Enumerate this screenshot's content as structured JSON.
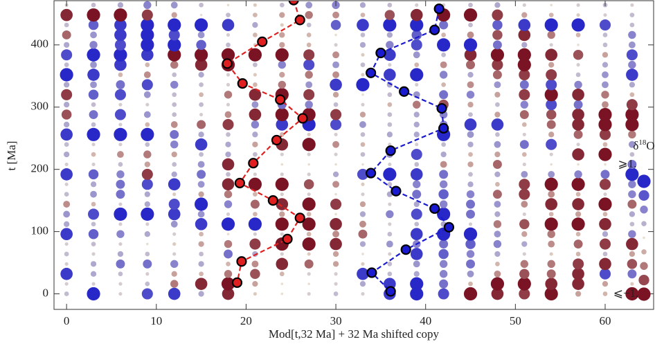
{
  "chart_data": {
    "type": "scatter",
    "xlabel": "Mod[t,32 Ma] + 32 Ma shifted copy",
    "ylabel": "t [Ma]",
    "xlim": [
      -1.4,
      65.4
    ],
    "ylim": [
      -25,
      471
    ],
    "xticks": [
      0,
      10,
      20,
      30,
      40,
      50,
      60
    ],
    "yticks": [
      0,
      100,
      200,
      300,
      400
    ],
    "x": [
      0,
      3,
      6,
      9,
      12,
      15,
      18,
      21,
      24,
      27,
      30,
      33,
      36,
      39,
      42,
      45,
      48,
      51,
      54,
      57,
      60,
      63
    ],
    "rows": [
      {
        "t": 0,
        "values": [
          0.2,
          1,
          0.1,
          0.8,
          0.9,
          0.3,
          -0.9,
          -0.1,
          0,
          0.1,
          0.2,
          0.1,
          0.9,
          1,
          0.8,
          -1,
          -0.9,
          -0.8,
          -1,
          -0.3,
          -0.2,
          -1
        ]
      },
      {
        "t": 16,
        "values": [
          0.1,
          0.1,
          0.1,
          0.2,
          -0.5,
          -0.9,
          -1,
          -0.3,
          0,
          0,
          0.1,
          0.3,
          0.9,
          1,
          0.6,
          -0.2,
          -1,
          -1,
          -0.9,
          -0.9,
          -0.3,
          -0.1
        ]
      },
      {
        "t": 32,
        "values": [
          0.9,
          0.3,
          0.2,
          0.1,
          -0.3,
          -0.2,
          -0.5,
          -0.7,
          -0.2,
          0.1,
          0.1,
          0.9,
          0.2,
          0.3,
          0.5,
          0.4,
          -0.4,
          -0.7,
          -0.6,
          -0.9,
          0.8,
          0.6
        ]
      },
      {
        "t": 48,
        "values": [
          0.1,
          0.3,
          0.6,
          0.6,
          0.5,
          0.3,
          -0.2,
          -0.4,
          -0.9,
          -0.6,
          -0.3,
          -0.1,
          0.2,
          0.4,
          0.5,
          0.6,
          -0.2,
          -0.5,
          -0.5,
          -0.8,
          -0.9,
          -0.7
        ]
      },
      {
        "t": 64,
        "values": [
          0.2,
          0.1,
          0.3,
          0.2,
          0.1,
          0.2,
          0.6,
          0.3,
          0.1,
          -0.1,
          -0.3,
          0,
          0.1,
          0.9,
          0.7,
          0.5,
          0.3,
          0.1,
          -0.1,
          -0.2,
          0.2,
          -0.3
        ]
      },
      {
        "t": 80,
        "values": [
          0.1,
          0.2,
          0.1,
          0,
          -0.1,
          -0.3,
          -0.5,
          -0.8,
          -1,
          -1,
          -0.9,
          0.3,
          0.4,
          0.5,
          0.6,
          0.7,
          0.5,
          0.3,
          -0.4,
          -0.6,
          -0.8,
          -0.9
        ]
      },
      {
        "t": 96,
        "values": [
          0.9,
          0.7,
          0.5,
          0.3,
          0.1,
          -0.2,
          0,
          0.1,
          0.1,
          -0.2,
          -0.4,
          -0.6,
          0.2,
          0.9,
          1,
          1,
          0.4,
          -0.3,
          -0.5,
          -0.2,
          0.3,
          0.5
        ]
      },
      {
        "t": 112,
        "values": [
          0.3,
          0.2,
          0.1,
          0.1,
          0.4,
          0.9,
          1,
          1,
          -1,
          -1,
          -0.9,
          -0.4,
          0.1,
          0.2,
          0.3,
          0.1,
          -0.5,
          -0.7,
          -1,
          -1,
          -0.9,
          0.2
        ]
      },
      {
        "t": 128,
        "values": [
          0.4,
          0.8,
          1,
          1,
          0.9,
          0.4,
          0.1,
          -0.2,
          -0.3,
          -0.2,
          0,
          0.3,
          0.5,
          0.8,
          1,
          0.6,
          0.3,
          0.1,
          -0.2,
          -0.3,
          -0.2,
          0.3
        ]
      },
      {
        "t": 144,
        "values": [
          -0.4,
          -0.2,
          0.1,
          0.3,
          0.8,
          1,
          0.5,
          -0.6,
          -0.9,
          -1,
          -0.8,
          -0.3,
          0.1,
          0.3,
          0.5,
          0.6,
          0.4,
          -0.4,
          -0.9,
          -0.9,
          -1,
          -0.6
        ]
      },
      {
        "t": 160,
        "values": [
          0.2,
          0.4,
          0.6,
          0.3,
          -0.1,
          -0.3,
          -0.5,
          -0.2,
          0.1,
          0.1,
          0,
          0.1,
          0.3,
          0.6,
          0.7,
          0.5,
          -0.6,
          -0.8,
          -0.4,
          -0.2,
          0.1,
          0.5
        ]
      },
      {
        "t": 176,
        "values": [
          0.1,
          0.3,
          0.6,
          0.8,
          0.9,
          0.4,
          -0.9,
          -1,
          -1,
          -0.7,
          -0.4,
          -0.1,
          0.2,
          0.5,
          0.5,
          0.3,
          -0.2,
          -0.8,
          -1,
          -1,
          -0.8,
          0.5
        ]
      },
      {
        "t": 192,
        "values": [
          0.9,
          0.7,
          0.5,
          -0.8,
          0.3,
          0.6,
          0.2,
          0.1,
          0.1,
          0.1,
          0.3,
          0.8,
          1,
          0.9,
          0.6,
          0.2,
          0.3,
          0.4,
          0.4,
          0.5,
          0.6,
          1
        ]
      },
      {
        "t": 208,
        "values": [
          0.1,
          0.1,
          0.2,
          -0.3,
          0.2,
          0.4,
          -0.9,
          0,
          0,
          0,
          0,
          0,
          0.1,
          0.2,
          -0.4,
          -0.3,
          -0.6,
          0.1,
          0,
          0,
          0,
          0.6
        ]
      },
      {
        "t": 224,
        "values": [
          0.3,
          -0.2,
          -0.4,
          -0.5,
          -0.3,
          0.2,
          0.3,
          0.2,
          0.1,
          0.1,
          0.1,
          0.2,
          0.4,
          0.8,
          0.3,
          -0.2,
          -0.3,
          -0.2,
          0.1,
          -0.9,
          -1,
          0.2
        ]
      },
      {
        "t": 240,
        "values": [
          0.2,
          0.1,
          0.1,
          0.2,
          0.5,
          0.9,
          0.3,
          -0.3,
          -0.9,
          -1,
          -0.4,
          -0.2,
          0.1,
          0.1,
          0.2,
          0.3,
          0.4,
          0.6,
          0.8,
          0.1,
          -0.2,
          0.4
        ]
      },
      {
        "t": 256,
        "values": [
          0.9,
          1,
          1,
          1,
          0.6,
          0.3,
          0.2,
          0.3,
          -0.2,
          -0.1,
          0.1,
          0.2,
          0.3,
          0.3,
          1,
          0.4,
          0.2,
          0.1,
          -0.3,
          -0.6,
          -0.8,
          -0.5
        ]
      },
      {
        "t": 272,
        "values": [
          0.3,
          0.2,
          0.1,
          -0.2,
          -0.4,
          -0.6,
          -0.8,
          0.5,
          0.9,
          1,
          0.8,
          0.4,
          0.2,
          0.3,
          0.5,
          0.9,
          0.9,
          -0.2,
          -0.6,
          -0.9,
          -1,
          -1
        ]
      },
      {
        "t": 288,
        "values": [
          -0.7,
          0.6,
          0.8,
          0.4,
          0.2,
          0.1,
          -0.4,
          -0.9,
          -1,
          -1,
          -0.8,
          -0.3,
          0.2,
          0.3,
          0.5,
          0.2,
          -0.3,
          -0.6,
          -0.7,
          -0.9,
          -1,
          -1
        ]
      },
      {
        "t": 304,
        "values": [
          0.3,
          0.2,
          0.1,
          0.1,
          0.2,
          0.2,
          0.1,
          0.4,
          0.6,
          0.5,
          0.2,
          0.1,
          -0.2,
          -0.5,
          -0.7,
          -0.3,
          0.2,
          0.5,
          0.8,
          0.6,
          -0.4,
          -0.8
        ]
      },
      {
        "t": 320,
        "values": [
          -0.8,
          0.7,
          0.8,
          0.4,
          0.2,
          -0.2,
          -0.5,
          -0.9,
          -1,
          -0.8,
          -0.3,
          0,
          0.2,
          0.4,
          0.6,
          0.5,
          -0.3,
          -0.8,
          -1,
          -0.9,
          -0.5,
          -0.2
        ]
      },
      {
        "t": 336,
        "values": [
          0.3,
          0.4,
          0.6,
          0.8,
          0.5,
          0.2,
          0.1,
          -0.2,
          -0.5,
          0.4,
          0.9,
          1,
          0.3,
          0.1,
          -0.2,
          -0.4,
          0.4,
          0.6,
          0.8,
          0.5,
          0.4,
          0.3
        ]
      },
      {
        "t": 352,
        "values": [
          1,
          0.9,
          -0.2,
          -0.4,
          0.2,
          0.3,
          0.1,
          -0.1,
          -0.3,
          -0.5,
          -0.4,
          -0.1,
          0.9,
          1,
          0.5,
          0.3,
          -0.6,
          -0.8,
          -0.8,
          0.2,
          0.4,
          0.9
        ]
      },
      {
        "t": 368,
        "values": [
          0.2,
          0.4,
          0.9,
          -0.2,
          -0.5,
          -0.9,
          -1,
          0.2,
          0.5,
          0.8,
          0.4,
          0.2,
          0.1,
          -0.2,
          -0.4,
          -0.6,
          -0.8,
          -1,
          -0.3,
          0.1,
          0.3,
          0.5
        ]
      },
      {
        "t": 384,
        "values": [
          0.8,
          1,
          1,
          0.9,
          -1,
          -1,
          -1,
          -1,
          -1,
          -0.8,
          -0.4,
          -0.1,
          0.9,
          0.4,
          0.2,
          -0.9,
          -1,
          -1,
          -0.9,
          -0.7,
          -0.3,
          0.8
        ]
      },
      {
        "t": 400,
        "values": [
          0.3,
          0.5,
          0.8,
          1,
          1,
          0.7,
          0.2,
          -0.1,
          -0.3,
          -0.2,
          0.1,
          0.3,
          0.5,
          0.8,
          1,
          1,
          0.6,
          0.3,
          0.1,
          0,
          0.2,
          0.4
        ]
      },
      {
        "t": 416,
        "values": [
          -0.6,
          0.4,
          0.9,
          1,
          0.8,
          0.4,
          0.1,
          -0.2,
          -0.3,
          -0.2,
          0,
          0.2,
          0.3,
          0.7,
          -0.2,
          -0.4,
          -0.7,
          -0.9,
          -0.5,
          -0.2,
          0.2,
          0.5
        ]
      },
      {
        "t": 432,
        "values": [
          0.2,
          0.7,
          0.9,
          1,
          1,
          1,
          0.9,
          0.3,
          -0.1,
          0.2,
          0.7,
          0.9,
          1,
          1,
          0.6,
          0.2,
          0.7,
          0.9,
          1,
          1,
          0.8,
          0.2
        ]
      },
      {
        "t": 448,
        "values": [
          -0.9,
          -1,
          -1,
          -0.8,
          -0.3,
          0,
          0.2,
          -0.2,
          -0.3,
          -0.5,
          -0.4,
          -0.2,
          -0.7,
          -0.9,
          -1,
          -1,
          -0.8,
          -0.3,
          -0.2,
          -0.1,
          0.1,
          0.2
        ]
      },
      {
        "t": 464,
        "values": [
          0.1,
          0.2,
          0.3,
          0.5,
          0.4,
          0.2,
          0,
          -0.1,
          0.2,
          0.4,
          0.5,
          0.3,
          0.2,
          0.1,
          0.1,
          0.2,
          0.3,
          0.1,
          0,
          0.1,
          0.2,
          0.1
        ]
      }
    ],
    "series": [
      {
        "color": "#e02020",
        "x": [
          25.3,
          26,
          21.8,
          17.9,
          19.6,
          23.8,
          26.3,
          23.4,
          20.8,
          19.3,
          23,
          26,
          24.6,
          19.5,
          19
        ],
        "values": [
          472,
          440,
          405,
          370,
          338,
          312,
          282,
          247,
          210,
          178,
          150,
          122,
          88,
          52,
          18
        ]
      },
      {
        "color": "#1a1ad0",
        "x": [
          41.5,
          41,
          35,
          33.9,
          37.6,
          41.8,
          42,
          36.1,
          33.9,
          36.7,
          41,
          42.6,
          37.8,
          34,
          36.1
        ],
        "values": [
          458,
          424,
          387,
          355,
          325,
          298,
          266,
          230,
          194,
          165,
          137,
          107,
          71,
          34,
          4
        ]
      }
    ],
    "legend": {
      "title_symbol": "δ",
      "title_sup": "18",
      "title_main": "O",
      "top_label": "⩾1.",
      "bottom_label": "⩽−1.",
      "levels": [
        1,
        0.75,
        0.5,
        0.25,
        0,
        -0.25,
        -0.5,
        -0.75,
        -1
      ]
    }
  }
}
